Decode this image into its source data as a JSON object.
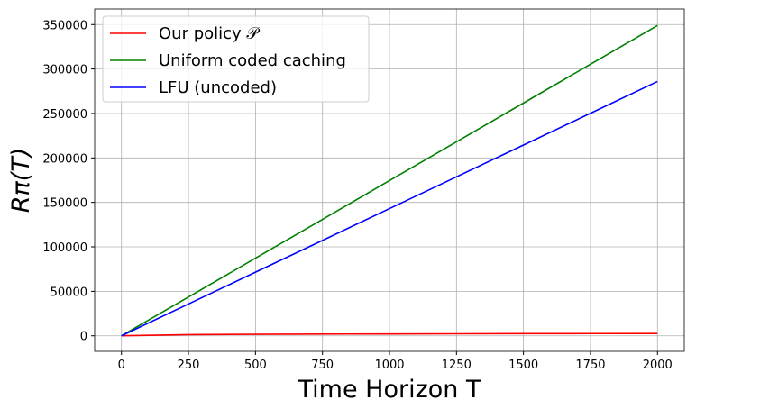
{
  "chart_data": {
    "type": "line",
    "x_label": "Time Horizon T",
    "y_label": "Rπ(T)",
    "x": [
      0,
      250,
      500,
      750,
      1000,
      1250,
      1500,
      1750,
      2000
    ],
    "series": [
      {
        "name": "Our policy 𝒫",
        "color": "#ff0000",
        "values": [
          0,
          1300,
          1700,
          1950,
          2100,
          2250,
          2400,
          2500,
          2600
        ]
      },
      {
        "name": "Uniform coded caching",
        "color": "#008000",
        "values": [
          0,
          43625,
          87250,
          130875,
          174500,
          218125,
          261750,
          305375,
          349000
        ]
      },
      {
        "name": "LFU (uncoded)",
        "color": "#0000ff",
        "values": [
          0,
          35750,
          71500,
          107250,
          143000,
          178750,
          214500,
          250250,
          286000
        ]
      }
    ],
    "xlim": [
      -100,
      2100
    ],
    "ylim": [
      -17500,
      367500
    ],
    "xticks": [
      0,
      250,
      500,
      750,
      1000,
      1250,
      1500,
      1750,
      2000
    ],
    "yticks": [
      0,
      50000,
      100000,
      150000,
      200000,
      250000,
      300000,
      350000
    ],
    "grid": true,
    "legend": "upper-left"
  }
}
